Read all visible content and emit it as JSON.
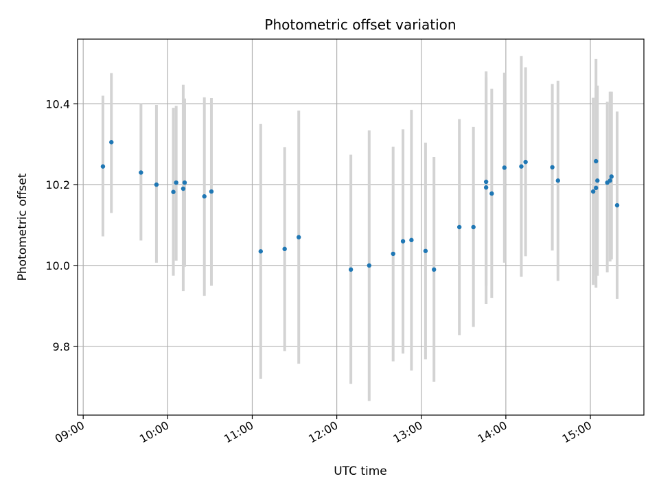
{
  "chart_data": {
    "type": "scatter",
    "title": "Photometric offset variation",
    "xlabel": "UTC time",
    "ylabel": "Photometric offset",
    "x_is_time": true,
    "xlim": [
      "08:56",
      "15:38"
    ],
    "ylim": [
      9.63,
      10.56
    ],
    "xticks": [
      "09:00",
      "10:00",
      "11:00",
      "12:00",
      "13:00",
      "14:00",
      "15:00"
    ],
    "yticks": [
      9.8,
      10.0,
      10.2,
      10.4
    ],
    "ytick_labels": [
      "9.8",
      "10.0",
      "10.2",
      "10.4"
    ],
    "grid": true,
    "colors": {
      "points": "#1f77b4",
      "errorbars": "#d3d3d3",
      "grid": "#b0b0b0"
    },
    "series": [
      {
        "x": [
          "09:14",
          "09:20",
          "09:41",
          "09:52",
          "10:04",
          "10:06",
          "10:11",
          "10:12",
          "10:26",
          "10:31",
          "11:06",
          "11:23",
          "11:33",
          "12:10",
          "12:23",
          "12:40",
          "12:47",
          "12:53",
          "13:03",
          "13:09",
          "13:27",
          "13:37",
          "13:46",
          "13:46",
          "13:50",
          "13:59",
          "14:11",
          "14:14",
          "14:33",
          "14:37",
          "15:02",
          "15:04",
          "15:04",
          "15:05",
          "15:12",
          "15:14",
          "15:15",
          "15:19"
        ],
        "y": [
          10.245,
          10.305,
          10.23,
          10.2,
          10.182,
          10.205,
          10.19,
          10.205,
          10.171,
          10.183,
          10.035,
          10.041,
          10.07,
          9.99,
          10.0,
          10.029,
          10.06,
          10.063,
          10.036,
          9.99,
          10.095,
          10.095,
          10.207,
          10.193,
          10.178,
          10.242,
          10.245,
          10.256,
          10.243,
          10.21,
          10.183,
          10.192,
          10.258,
          10.21,
          10.205,
          10.21,
          10.22,
          10.149
        ],
        "yerr_low": [
          10.072,
          10.13,
          10.062,
          10.007,
          9.975,
          10.012,
          9.937,
          9.997,
          9.925,
          9.95,
          9.72,
          9.788,
          9.757,
          9.707,
          9.665,
          9.763,
          9.782,
          9.74,
          9.768,
          9.712,
          9.828,
          9.848,
          9.95,
          9.905,
          9.92,
          10.007,
          9.972,
          10.023,
          10.037,
          9.962,
          9.952,
          9.945,
          9.975,
          9.975,
          9.983,
          10.01,
          10.015,
          9.917
        ],
        "yerr_high": [
          10.42,
          10.476,
          10.4,
          10.397,
          10.39,
          10.395,
          10.447,
          10.413,
          10.416,
          10.414,
          10.35,
          10.293,
          10.383,
          10.274,
          10.334,
          10.294,
          10.337,
          10.385,
          10.304,
          10.268,
          10.362,
          10.343,
          10.465,
          10.48,
          10.437,
          10.477,
          10.518,
          10.49,
          10.449,
          10.457,
          10.415,
          10.44,
          10.511,
          10.445,
          10.405,
          10.43,
          10.43,
          10.381
        ]
      }
    ]
  }
}
